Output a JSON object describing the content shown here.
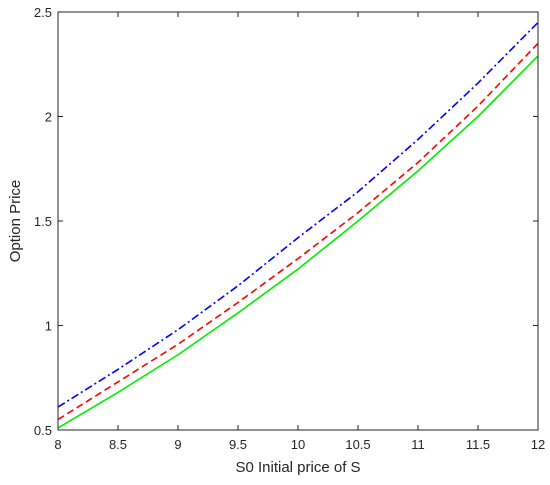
{
  "chart_data": {
    "type": "line",
    "title": "",
    "xlabel": "S0 Initial price of S",
    "ylabel": "Option Price",
    "xlim": [
      8,
      12
    ],
    "ylim": [
      0.5,
      2.5
    ],
    "xticks": [
      "8",
      "8.5",
      "9",
      "9.5",
      "10",
      "10.5",
      "11",
      "11.5",
      "12"
    ],
    "yticks": [
      "0.5",
      "1",
      "1.5",
      "2",
      "2.5"
    ],
    "grid": false,
    "legend": "none",
    "x": [
      8,
      8.5,
      9,
      9.5,
      10,
      10.5,
      11,
      11.5,
      12
    ],
    "series": [
      {
        "color": "#0000ff",
        "style": "dash-dot",
        "values": [
          0.61,
          0.79,
          0.98,
          1.19,
          1.42,
          1.64,
          1.89,
          2.16,
          2.45
        ]
      },
      {
        "color": "#ff0000",
        "style": "dashed",
        "values": [
          0.55,
          0.73,
          0.91,
          1.11,
          1.32,
          1.54,
          1.78,
          2.05,
          2.35
        ]
      },
      {
        "color": "#00ee00",
        "style": "solid",
        "values": [
          0.51,
          0.68,
          0.86,
          1.06,
          1.27,
          1.5,
          1.74,
          2.0,
          2.29
        ]
      }
    ]
  }
}
